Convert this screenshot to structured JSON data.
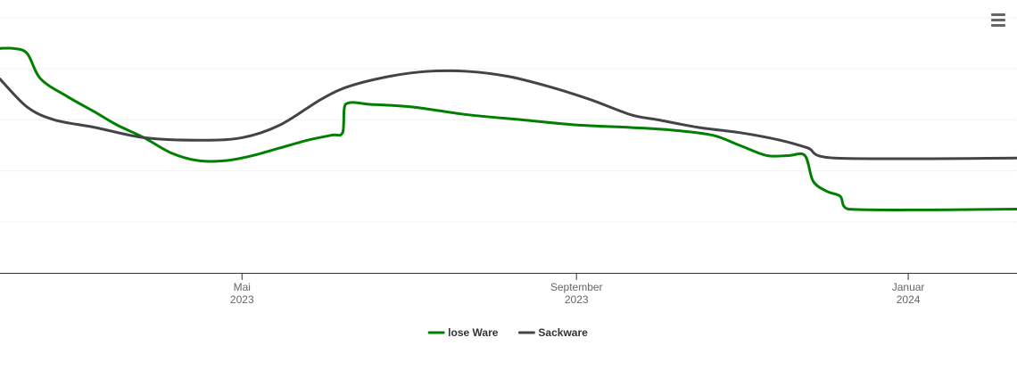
{
  "chart_data": {
    "type": "line",
    "title": "",
    "xlabel": "",
    "ylabel": "",
    "x_axis_type": "datetime",
    "xlim": [
      "2023-02-01",
      "2024-02-10"
    ],
    "ylim": [
      0,
      100
    ],
    "grid_y": true,
    "legend_position": "bottom-center",
    "x_ticks": [
      {
        "date": "2023-05-01",
        "label_line1": "Mai",
        "label_line2": "2023"
      },
      {
        "date": "2023-09-01",
        "label_line1": "September",
        "label_line2": "2023"
      },
      {
        "date": "2024-01-01",
        "label_line1": "Januar",
        "label_line2": "2024"
      }
    ],
    "series": [
      {
        "name": "lose Ware",
        "color": "#007f00",
        "points": [
          [
            "2023-02-01",
            88
          ],
          [
            "2023-02-06",
            88
          ],
          [
            "2023-02-11",
            86
          ],
          [
            "2023-02-16",
            76
          ],
          [
            "2023-02-26",
            69
          ],
          [
            "2023-03-08",
            63
          ],
          [
            "2023-03-16",
            58
          ],
          [
            "2023-03-26",
            53
          ],
          [
            "2023-04-05",
            47
          ],
          [
            "2023-04-15",
            44
          ],
          [
            "2023-04-25",
            44
          ],
          [
            "2023-05-05",
            46
          ],
          [
            "2023-05-15",
            49
          ],
          [
            "2023-05-25",
            52
          ],
          [
            "2023-06-03",
            54
          ],
          [
            "2023-06-07",
            55
          ],
          [
            "2023-06-08",
            66
          ],
          [
            "2023-06-18",
            66
          ],
          [
            "2023-07-03",
            65
          ],
          [
            "2023-07-23",
            62
          ],
          [
            "2023-08-12",
            60
          ],
          [
            "2023-09-01",
            58
          ],
          [
            "2023-09-21",
            57
          ],
          [
            "2023-10-06",
            56
          ],
          [
            "2023-10-21",
            54
          ],
          [
            "2023-10-31",
            50
          ],
          [
            "2023-11-10",
            46
          ],
          [
            "2023-11-18",
            46
          ],
          [
            "2023-11-24",
            46
          ],
          [
            "2023-11-27",
            36
          ],
          [
            "2023-12-02",
            32
          ],
          [
            "2023-12-07",
            30
          ],
          [
            "2023-12-10",
            25
          ],
          [
            "2024-02-10",
            25
          ]
        ]
      },
      {
        "name": "Sackware",
        "color": "#434348",
        "points": [
          [
            "2023-02-01",
            76
          ],
          [
            "2023-02-11",
            65
          ],
          [
            "2023-02-21",
            60
          ],
          [
            "2023-03-08",
            57
          ],
          [
            "2023-03-26",
            53
          ],
          [
            "2023-04-15",
            52
          ],
          [
            "2023-05-01",
            53
          ],
          [
            "2023-05-15",
            58
          ],
          [
            "2023-05-30",
            68
          ],
          [
            "2023-06-09",
            73
          ],
          [
            "2023-06-24",
            77
          ],
          [
            "2023-07-08",
            79
          ],
          [
            "2023-07-23",
            79
          ],
          [
            "2023-08-07",
            77
          ],
          [
            "2023-08-22",
            73
          ],
          [
            "2023-09-06",
            68
          ],
          [
            "2023-09-21",
            62
          ],
          [
            "2023-10-01",
            60
          ],
          [
            "2023-10-16",
            57
          ],
          [
            "2023-10-31",
            55
          ],
          [
            "2023-11-15",
            52
          ],
          [
            "2023-11-25",
            49
          ],
          [
            "2023-12-05",
            45
          ],
          [
            "2024-02-10",
            45
          ]
        ]
      }
    ]
  }
}
